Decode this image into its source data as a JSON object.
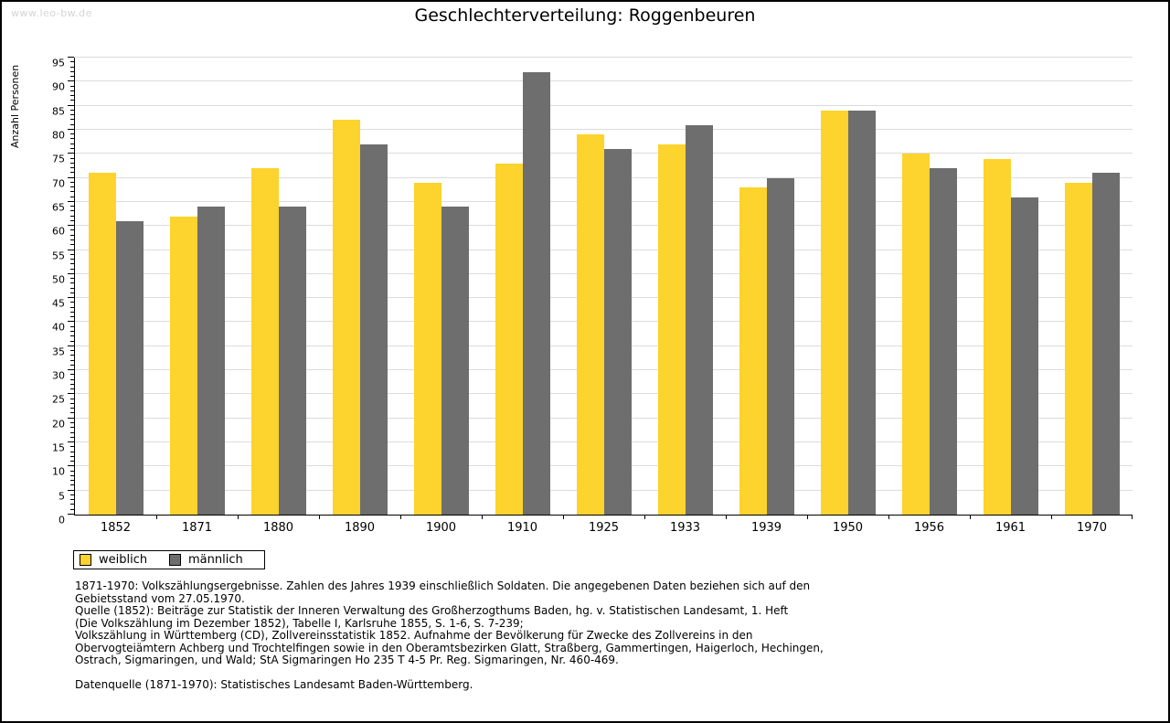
{
  "watermark": "www.leo-bw.de",
  "title": "Geschlechterverteilung: Roggenbeuren",
  "chart_data": {
    "type": "bar",
    "title": "Geschlechterverteilung: Roggenbeuren",
    "xlabel": "",
    "ylabel": "Anzahl Personen",
    "ylim": [
      0,
      95
    ],
    "ytick_major_step": 5,
    "ytick_minor_step": 1,
    "grid": true,
    "legend_position": "bottom-left",
    "categories": [
      "1852",
      "1871",
      "1880",
      "1890",
      "1900",
      "1910",
      "1925",
      "1933",
      "1939",
      "1950",
      "1956",
      "1961",
      "1970"
    ],
    "series": [
      {
        "name": "weiblich",
        "color": "#fdd32d",
        "values": [
          71,
          62,
          72,
          82,
          69,
          73,
          79,
          77,
          68,
          84,
          75,
          74,
          69
        ]
      },
      {
        "name": "männlich",
        "color": "#6e6e6e",
        "values": [
          61,
          64,
          64,
          77,
          64,
          92,
          76,
          81,
          70,
          84,
          72,
          66,
          71
        ]
      }
    ]
  },
  "legend": {
    "items": [
      {
        "label": "weiblich",
        "color": "#fdd32d"
      },
      {
        "label": "männlich",
        "color": "#6e6e6e"
      }
    ]
  },
  "footnotes": {
    "lines": [
      "1871-1970: Volkszählungsergebnisse. Zahlen des Jahres 1939 einschließlich Soldaten. Die angegebenen Daten beziehen sich auf den",
      "Gebietsstand vom 27.05.1970.",
      "Quelle (1852): Beiträge zur Statistik der Inneren Verwaltung des Großherzogthums Baden, hg. v. Statistischen Landesamt, 1. Heft",
      "(Die Volkszählung im Dezember 1852), Tabelle I, Karlsruhe 1855, S. 1-6, S. 7-239;",
      "Volkszählung in Württemberg (CD), Zollvereinsstatistik 1852. Aufnahme der Bevölkerung für Zwecke des Zollvereins in den",
      "Obervogteiämtern Achberg und Trochtelfingen sowie in den Oberamtsbezirken Glatt, Straßberg, Gammertingen, Haigerloch, Hechingen,",
      "Ostrach, Sigmaringen, und Wald; StA Sigmaringen Ho 235 T 4-5 Pr. Reg. Sigmaringen, Nr. 460-469.",
      "",
      "Datenquelle (1871-1970): Statistisches Landesamt Baden-Württemberg."
    ]
  },
  "colors": {
    "weiblich": "#fdd32d",
    "maennlich": "#6e6e6e",
    "gridline": "#dcdcdc",
    "axis": "#000000",
    "watermark": "#d4d4d4",
    "background": "#ffffff"
  }
}
